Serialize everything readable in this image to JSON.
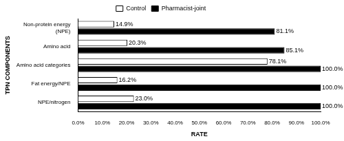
{
  "chart_data": {
    "type": "bar",
    "orientation": "horizontal",
    "x_label": "RATE",
    "y_label": "TPN COMPONENTS",
    "categories": [
      "Non-protein energy (NPE)",
      "Amino acid",
      "Amino acid categories",
      "Fat energy/NPE",
      "NPE/nitrogen"
    ],
    "series": [
      {
        "name": "Control",
        "color": "#ffffff",
        "values": [
          14.9,
          20.3,
          78.1,
          16.2,
          23.0
        ],
        "value_labels": [
          "14.9%",
          "20.3%",
          "78.1%",
          "16.2%",
          "23.0%"
        ]
      },
      {
        "name": "Pharmacist-joint",
        "color": "#000000",
        "values": [
          81.1,
          85.1,
          100,
          100,
          100
        ],
        "value_labels": [
          "81.1%",
          "85.1%",
          "100.0%",
          "100.0%",
          "100.0%"
        ]
      }
    ],
    "xlim": [
      0,
      100
    ],
    "xticks": [
      {
        "value": 0,
        "label": "0.0%"
      },
      {
        "value": 10,
        "label": "10.0%"
      },
      {
        "value": 20,
        "label": "20.0%"
      },
      {
        "value": 30,
        "label": "30.0%"
      },
      {
        "value": 40,
        "label": "40.0%"
      },
      {
        "value": 50,
        "label": "50.0%"
      },
      {
        "value": 60,
        "label": "60.0%"
      },
      {
        "value": 70,
        "label": "70.0%"
      },
      {
        "value": 80,
        "label": "80.0%"
      },
      {
        "value": 90,
        "label": "90.0%"
      },
      {
        "value": 100,
        "label": "100.0%"
      }
    ],
    "grid": false,
    "legend": "top",
    "data_labels": true
  }
}
